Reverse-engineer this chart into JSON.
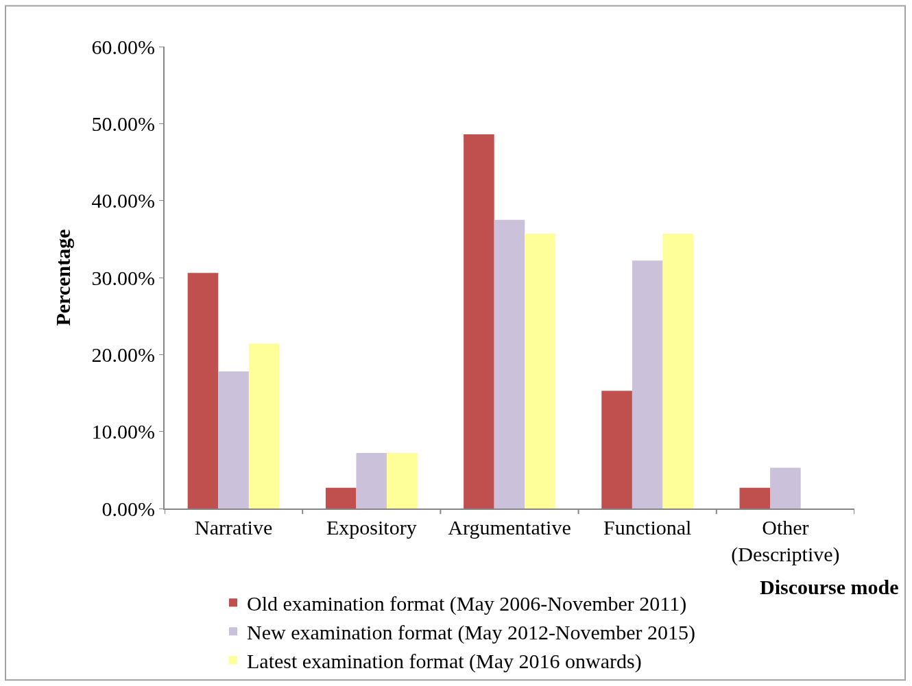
{
  "chart_data": {
    "type": "bar",
    "xlabel": "Discourse mode",
    "ylabel": "Percentage",
    "categories": [
      "Narrative",
      "Expository",
      "Argumentative",
      "Functional",
      "Other (Descriptive)"
    ],
    "series": [
      {
        "name": "Old examination format (May 2006-November 2011)",
        "color": "#c0504d",
        "values": [
          30.6,
          2.7,
          48.6,
          15.3,
          2.7
        ]
      },
      {
        "name": "New examination format (May 2012-November 2015)",
        "color": "#ccc1da",
        "values": [
          17.8,
          7.2,
          37.5,
          32.2,
          5.3
        ]
      },
      {
        "name": "Latest examination format (May 2016 onwards)",
        "color": "#ffff99",
        "values": [
          21.4,
          7.2,
          35.7,
          35.7,
          0
        ]
      }
    ],
    "ylim": [
      0,
      60
    ],
    "yticks": [
      {
        "value": 0,
        "label": "0.00%"
      },
      {
        "value": 10,
        "label": "10.00%"
      },
      {
        "value": 20,
        "label": "20.00%"
      },
      {
        "value": 30,
        "label": "30.00%"
      },
      {
        "value": 40,
        "label": "40.00%"
      },
      {
        "value": 50,
        "label": "50.00%"
      },
      {
        "value": 60,
        "label": "60.00%"
      }
    ],
    "legend": "bottom"
  }
}
